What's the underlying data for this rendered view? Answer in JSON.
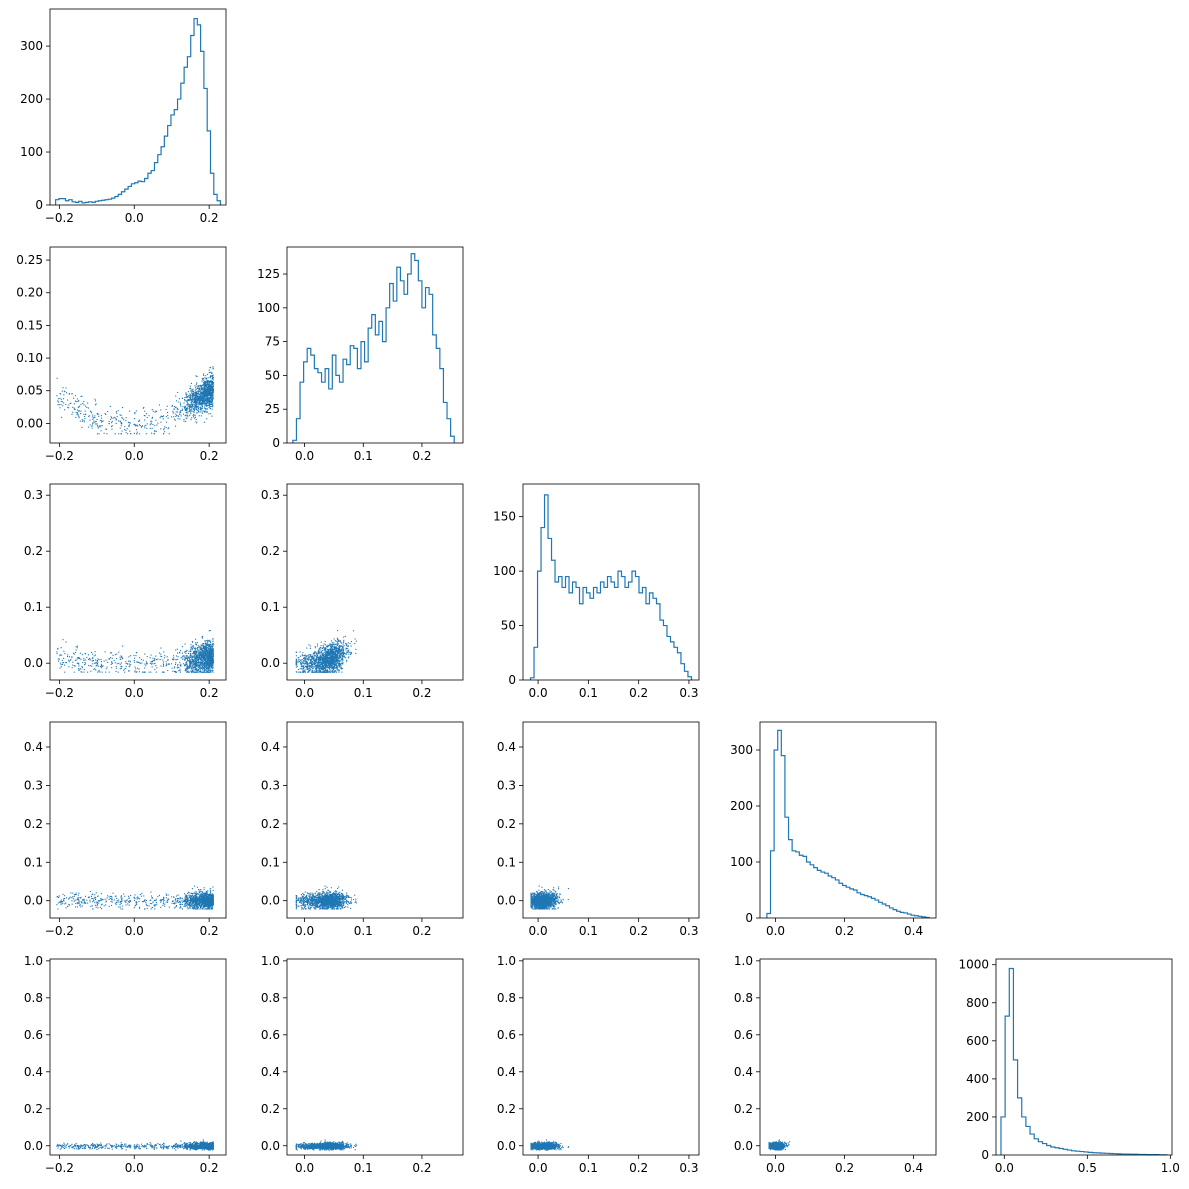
{
  "colors": {
    "series": "#1f77b4",
    "axes": "#000000",
    "background": "#ffffff"
  },
  "chart_data": {
    "type": "corner",
    "n_params": 5,
    "ranges": [
      [
        -0.225,
        0.245
      ],
      [
        -0.03,
        0.27
      ],
      [
        -0.03,
        0.32
      ],
      [
        -0.045,
        0.465
      ],
      [
        -0.05,
        1.01
      ]
    ],
    "ticks": [
      {
        "values": [
          -0.2,
          0.0,
          0.2
        ],
        "labels": [
          "−0.2",
          "0.0",
          "0.2"
        ]
      },
      {
        "values": [
          0.0,
          0.1,
          0.2
        ],
        "labels": [
          "0.0",
          "0.1",
          "0.2"
        ]
      },
      {
        "values": [
          0.0,
          0.1,
          0.2,
          0.3
        ],
        "labels": [
          "0.0",
          "0.1",
          "0.2",
          "0.3"
        ]
      },
      {
        "values": [
          0.0,
          0.2,
          0.4
        ],
        "labels": [
          "0.0",
          "0.2",
          "0.4"
        ]
      },
      {
        "values": [
          0.0,
          0.5,
          1.0
        ],
        "labels": [
          "0.0",
          "0.5",
          "1.0"
        ]
      }
    ],
    "scatter_yticks": [
      null,
      {
        "values": [
          0.0,
          0.05,
          0.1,
          0.15,
          0.2,
          0.25
        ],
        "labels": [
          "0.00",
          "0.05",
          "0.10",
          "0.15",
          "0.20",
          "0.25"
        ]
      },
      {
        "values": [
          0.0,
          0.1,
          0.2,
          0.3
        ],
        "labels": [
          "0.0",
          "0.1",
          "0.2",
          "0.3"
        ]
      },
      {
        "values": [
          0.0,
          0.1,
          0.2,
          0.3,
          0.4
        ],
        "labels": [
          "0.0",
          "0.1",
          "0.2",
          "0.3",
          "0.4"
        ]
      },
      {
        "values": [
          0.0,
          0.2,
          0.4,
          0.6,
          0.8,
          1.0
        ],
        "labels": [
          "0.0",
          "0.2",
          "0.4",
          "0.6",
          "0.8",
          "1.0"
        ]
      }
    ],
    "histograms": [
      {
        "ylim": [
          0,
          370
        ],
        "yticks": [
          0,
          100,
          200,
          300
        ],
        "ytick_labels": [
          "0",
          "100",
          "200",
          "300"
        ],
        "edges_range": [
          -0.21,
          0.23
        ],
        "counts": [
          10,
          12,
          12,
          8,
          10,
          6,
          5,
          7,
          4,
          5,
          6,
          5,
          7,
          8,
          9,
          10,
          11,
          13,
          16,
          20,
          25,
          30,
          35,
          40,
          42,
          45,
          44,
          50,
          60,
          65,
          80,
          95,
          110,
          130,
          150,
          170,
          180,
          200,
          230,
          260,
          280,
          320,
          352,
          340,
          290,
          220,
          140,
          60,
          20,
          8
        ]
      },
      {
        "ylim": [
          0,
          145
        ],
        "yticks": [
          0,
          25,
          50,
          75,
          100,
          125
        ],
        "ytick_labels": [
          "0",
          "25",
          "50",
          "75",
          "100",
          "125"
        ],
        "edges_range": [
          -0.02,
          0.255
        ],
        "counts": [
          2,
          18,
          45,
          60,
          70,
          65,
          55,
          52,
          45,
          55,
          40,
          65,
          50,
          45,
          62,
          58,
          72,
          70,
          55,
          75,
          60,
          85,
          95,
          80,
          90,
          75,
          100,
          118,
          105,
          130,
          120,
          110,
          125,
          140,
          135,
          120,
          100,
          115,
          110,
          80,
          70,
          55,
          30,
          18,
          5
        ]
      },
      {
        "ylim": [
          0,
          180
        ],
        "yticks": [
          0,
          50,
          100,
          150
        ],
        "ytick_labels": [
          "0",
          "50",
          "100",
          "150"
        ],
        "edges_range": [
          -0.015,
          0.305
        ],
        "counts": [
          2,
          30,
          100,
          140,
          170,
          130,
          110,
          90,
          95,
          85,
          95,
          80,
          90,
          85,
          70,
          85,
          80,
          75,
          85,
          80,
          90,
          85,
          95,
          90,
          85,
          100,
          95,
          85,
          90,
          100,
          95,
          80,
          85,
          70,
          80,
          75,
          70,
          55,
          50,
          40,
          35,
          30,
          25,
          15,
          8,
          3
        ]
      },
      {
        "ylim": [
          0,
          350
        ],
        "yticks": [
          0,
          100,
          200,
          300
        ],
        "ytick_labels": [
          "0",
          "100",
          "200",
          "300"
        ],
        "edges_range": [
          -0.025,
          0.445
        ],
        "counts": [
          8,
          120,
          300,
          335,
          290,
          180,
          140,
          120,
          118,
          112,
          110,
          100,
          95,
          90,
          85,
          82,
          80,
          75,
          72,
          68,
          62,
          58,
          55,
          52,
          50,
          45,
          42,
          40,
          38,
          35,
          32,
          28,
          25,
          22,
          18,
          15,
          12,
          10,
          9,
          7,
          5,
          4,
          3,
          2,
          1
        ]
      },
      {
        "ylim": [
          0,
          1030
        ],
        "yticks": [
          0,
          200,
          400,
          600,
          800,
          1000
        ],
        "ytick_labels": [
          "0",
          "200",
          "400",
          "600",
          "800",
          "1000"
        ],
        "edges_range": [
          -0.02,
          0.98
        ],
        "counts": [
          200,
          730,
          980,
          500,
          300,
          200,
          150,
          110,
          85,
          70,
          60,
          50,
          42,
          38,
          34,
          30,
          26,
          22,
          20,
          18,
          16,
          14,
          12,
          11,
          10,
          9,
          8,
          7,
          6,
          5,
          5,
          4,
          4,
          3,
          3,
          2,
          2,
          2,
          1,
          1
        ]
      }
    ],
    "scatter_point_count": 1500
  }
}
